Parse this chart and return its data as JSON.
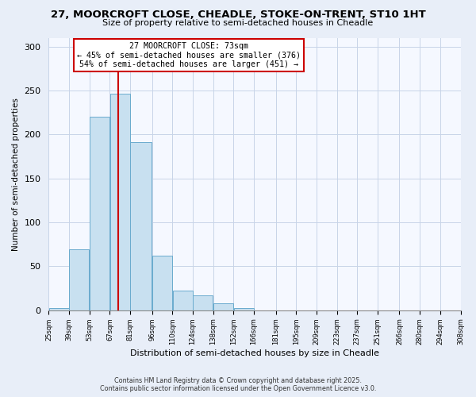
{
  "title": "27, MOORCROFT CLOSE, CHEADLE, STOKE-ON-TRENT, ST10 1HT",
  "subtitle": "Size of property relative to semi-detached houses in Cheadle",
  "xlabel": "Distribution of semi-detached houses by size in Cheadle",
  "ylabel": "Number of semi-detached properties",
  "bar_edges": [
    25,
    39,
    53,
    67,
    81,
    96,
    110,
    124,
    138,
    152,
    166,
    181,
    195,
    209,
    223,
    237,
    251,
    266,
    280,
    294,
    308
  ],
  "bar_heights": [
    3,
    69,
    220,
    246,
    191,
    62,
    22,
    17,
    8,
    3,
    0,
    0,
    0,
    0,
    0,
    0,
    0,
    0,
    0,
    0
  ],
  "bar_color": "#c8e0f0",
  "bar_edgecolor": "#6aabce",
  "property_line_x": 73,
  "property_line_color": "#cc0000",
  "annotation_title": "27 MOORCROFT CLOSE: 73sqm",
  "annotation_line1": "← 45% of semi-detached houses are smaller (376)",
  "annotation_line2": "54% of semi-detached houses are larger (451) →",
  "annotation_box_facecolor": "#ffffff",
  "annotation_box_edgecolor": "#cc0000",
  "ylim": [
    0,
    310
  ],
  "yticks": [
    0,
    50,
    100,
    150,
    200,
    250,
    300
  ],
  "xlim_min": 25,
  "xlim_max": 308,
  "tick_labels": [
    "25sqm",
    "39sqm",
    "53sqm",
    "67sqm",
    "81sqm",
    "96sqm",
    "110sqm",
    "124sqm",
    "138sqm",
    "152sqm",
    "166sqm",
    "181sqm",
    "195sqm",
    "209sqm",
    "223sqm",
    "237sqm",
    "251sqm",
    "266sqm",
    "280sqm",
    "294sqm",
    "308sqm"
  ],
  "footnote1": "Contains HM Land Registry data © Crown copyright and database right 2025.",
  "footnote2": "Contains public sector information licensed under the Open Government Licence v3.0.",
  "bg_color": "#e8eef8",
  "plot_bg_color": "#f5f8ff",
  "grid_color": "#c8d4e8"
}
